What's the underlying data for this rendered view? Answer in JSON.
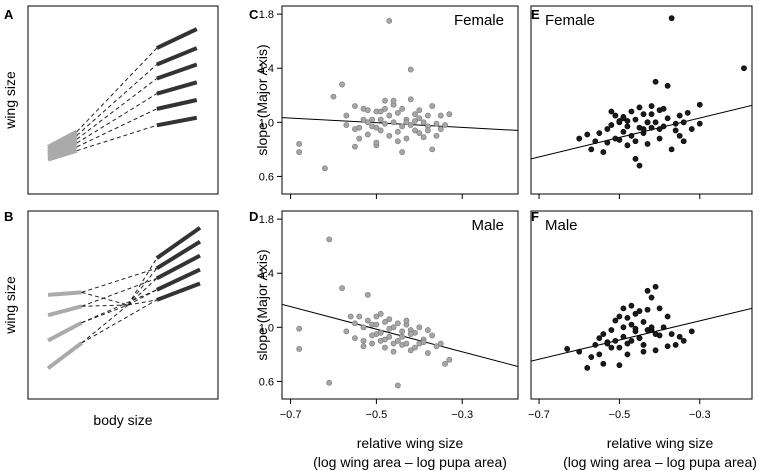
{
  "panels": {
    "A": {
      "letter": "A",
      "ylabel": "wing size"
    },
    "B": {
      "letter": "B",
      "ylabel": "wing size"
    },
    "xlabel_schematic": "body size"
  },
  "colors": {
    "light_segment": "#aaaaaa",
    "dark_segment": "#333333",
    "grey_point": "#a6a6a6",
    "black_point": "#1a1a1a",
    "axis": "#000000"
  },
  "axes_text": {
    "ylabel": "slope (Major Axis)",
    "xlabel_line1": "relative wing size",
    "xlabel_line2": "(log wing area – log pupa area)"
  },
  "chart_data": [
    {
      "type": "schematic",
      "panel": "A",
      "xlabel": "",
      "ylabel": "wing size",
      "description_values": {
        "light_start": [
          {
            "x": 0.0,
            "y": 1.3
          },
          {
            "x": 0.0,
            "y": 1.5
          },
          {
            "x": 0.0,
            "y": 1.7
          },
          {
            "x": 0.0,
            "y": 1.9
          },
          {
            "x": 0.0,
            "y": 2.1
          },
          {
            "x": 0.0,
            "y": 2.3
          }
        ],
        "light_end": [
          {
            "x": 0.18,
            "y": 2.0
          },
          {
            "x": 0.18,
            "y": 2.3
          },
          {
            "x": 0.18,
            "y": 2.6
          },
          {
            "x": 0.18,
            "y": 2.9
          },
          {
            "x": 0.18,
            "y": 3.2
          },
          {
            "x": 0.18,
            "y": 3.5
          }
        ],
        "dark_start": [
          {
            "x": 0.68,
            "y": 4.0
          },
          {
            "x": 0.68,
            "y": 5.3
          },
          {
            "x": 0.68,
            "y": 6.5
          },
          {
            "x": 0.68,
            "y": 7.7
          },
          {
            "x": 0.68,
            "y": 8.8
          },
          {
            "x": 0.68,
            "y": 10.1
          }
        ],
        "dark_end": [
          {
            "x": 0.93,
            "y": 4.6
          },
          {
            "x": 0.93,
            "y": 6.0
          },
          {
            "x": 0.93,
            "y": 7.4
          },
          {
            "x": 0.93,
            "y": 8.8
          },
          {
            "x": 0.93,
            "y": 10.1
          },
          {
            "x": 0.93,
            "y": 11.6
          }
        ]
      }
    },
    {
      "type": "schematic",
      "panel": "B",
      "xlabel": "body size",
      "ylabel": "wing size",
      "description_values": {
        "light_start": [
          {
            "x": 0.0,
            "y": 1.0
          },
          {
            "x": 0.0,
            "y": 3.2
          },
          {
            "x": 0.0,
            "y": 5.2
          },
          {
            "x": 0.0,
            "y": 6.8
          }
        ],
        "light_end": [
          {
            "x": 0.21,
            "y": 3.0
          },
          {
            "x": 0.21,
            "y": 4.6
          },
          {
            "x": 0.21,
            "y": 5.9
          },
          {
            "x": 0.21,
            "y": 7.0
          }
        ],
        "dark_start": [
          {
            "x": 0.68,
            "y": 6.4
          },
          {
            "x": 0.68,
            "y": 7.2
          },
          {
            "x": 0.68,
            "y": 8.1
          },
          {
            "x": 0.68,
            "y": 8.9
          },
          {
            "x": 0.68,
            "y": 9.7
          }
        ],
        "dark_end": [
          {
            "x": 0.95,
            "y": 7.7
          },
          {
            "x": 0.95,
            "y": 8.8
          },
          {
            "x": 0.95,
            "y": 9.9
          },
          {
            "x": 0.95,
            "y": 11.0
          },
          {
            "x": 0.95,
            "y": 12.1
          }
        ]
      }
    },
    {
      "type": "scatter",
      "panel": "C",
      "title": "Female",
      "xlabel": "",
      "ylabel": "slope (Major Axis)",
      "xlim": [
        -0.72,
        -0.17
      ],
      "ylim": [
        0.47,
        1.86
      ],
      "xticks": [
        -0.7,
        -0.5,
        -0.3
      ],
      "yticks": [
        0.6,
        1.0,
        1.4,
        1.8
      ],
      "ytick_labels": [
        "0.6",
        "1.0",
        "1.4",
        "1.8"
      ],
      "fit_line": {
        "x": [
          -0.72,
          -0.17
        ],
        "y": [
          1.035,
          0.94
        ]
      },
      "x": [
        -0.68,
        -0.68,
        -0.62,
        -0.6,
        -0.58,
        -0.57,
        -0.55,
        -0.55,
        -0.53,
        -0.54,
        -0.52,
        -0.52,
        -0.51,
        -0.5,
        -0.5,
        -0.49,
        -0.49,
        -0.48,
        -0.48,
        -0.47,
        -0.47,
        -0.46,
        -0.46,
        -0.45,
        -0.45,
        -0.44,
        -0.44,
        -0.43,
        -0.43,
        -0.42,
        -0.42,
        -0.41,
        -0.41,
        -0.4,
        -0.4,
        -0.39,
        -0.39,
        -0.38,
        -0.38,
        -0.37,
        -0.37,
        -0.36,
        -0.36,
        -0.35,
        -0.35,
        -0.34,
        -0.33,
        -0.47,
        -0.5,
        -0.53,
        -0.55,
        -0.57,
        -0.42,
        -0.46,
        -0.49,
        -0.44,
        -0.52,
        -0.48,
        -0.43,
        -0.4,
        -0.54,
        -0.51,
        -0.45,
        -0.38,
        -0.5,
        -0.41
      ],
      "y": [
        0.84,
        0.78,
        0.66,
        1.19,
        1.28,
        1.05,
        1.12,
        0.95,
        1.02,
        0.88,
        1.0,
        0.91,
        0.97,
        1.08,
        0.83,
        1.02,
        0.94,
        1.1,
        0.99,
        1.05,
        0.9,
        1.13,
        1.0,
        1.07,
        0.93,
        1.1,
        0.97,
        1.02,
        0.88,
        1.39,
        0.98,
        1.06,
        0.94,
        1.03,
        0.92,
        1.0,
        0.89,
        1.05,
        0.97,
        1.12,
        0.8,
        0.99,
        0.9,
        1.05,
        0.95,
        0.98,
        1.06,
        1.75,
        0.85,
        1.1,
        0.82,
        0.98,
        1.17,
        1.16,
        1.08,
        0.78,
        1.09,
        1.16,
        1.0,
        1.09,
        0.96,
        1.02,
        0.86,
        0.94,
        0.96,
        1.01
      ]
    },
    {
      "type": "scatter",
      "panel": "D",
      "title": "Male",
      "xlabel": "relative wing size\n(log wing area – log pupa area)",
      "ylabel": "slope (Major Axis)",
      "xlim": [
        -0.72,
        -0.17
      ],
      "ylim": [
        0.47,
        1.86
      ],
      "xticks": [
        -0.7,
        -0.5,
        -0.3
      ],
      "yticks": [
        0.6,
        1.0,
        1.4,
        1.8
      ],
      "xtick_labels": [
        "−0.7",
        "−0.5",
        "−0.3"
      ],
      "ytick_labels": [
        "0.6",
        "1.0",
        "1.4",
        "1.8"
      ],
      "fit_line": {
        "x": [
          -0.72,
          -0.17
        ],
        "y": [
          1.17,
          0.71
        ]
      },
      "x": [
        -0.68,
        -0.68,
        -0.61,
        -0.61,
        -0.58,
        -0.56,
        -0.55,
        -0.54,
        -0.53,
        -0.53,
        -0.52,
        -0.51,
        -0.51,
        -0.5,
        -0.5,
        -0.49,
        -0.49,
        -0.48,
        -0.48,
        -0.47,
        -0.47,
        -0.46,
        -0.46,
        -0.45,
        -0.45,
        -0.44,
        -0.44,
        -0.43,
        -0.43,
        -0.42,
        -0.42,
        -0.41,
        -0.41,
        -0.4,
        -0.4,
        -0.39,
        -0.38,
        -0.38,
        -0.37,
        -0.36,
        -0.35,
        -0.34,
        -0.33,
        -0.52,
        -0.49,
        -0.55,
        -0.47,
        -0.5,
        -0.44,
        -0.57,
        -0.46,
        -0.48,
        -0.53,
        -0.42,
        -0.39,
        -0.51,
        -0.45,
        -0.43
      ],
      "y": [
        0.99,
        0.84,
        0.59,
        1.65,
        1.29,
        1.08,
        1.03,
        1.08,
        1.0,
        0.9,
        1.24,
        1.02,
        0.88,
        1.08,
        0.95,
        1.1,
        0.9,
        1.04,
        0.85,
        1.06,
        0.93,
        1.0,
        0.82,
        1.03,
        0.9,
        0.97,
        0.87,
        1.02,
        0.88,
        0.98,
        0.83,
        0.96,
        0.85,
        1.0,
        0.88,
        0.91,
        0.98,
        0.81,
        0.94,
        0.86,
        0.88,
        0.73,
        0.76,
        1.05,
        0.96,
        0.92,
        0.99,
        1.02,
        0.93,
        0.97,
        0.88,
        0.91,
        0.86,
        0.95,
        0.89,
        0.94,
        0.57,
        1.05
      ]
    },
    {
      "type": "scatter",
      "panel": "E",
      "title": "Female",
      "xlabel": "",
      "ylabel": "",
      "xlim": [
        -0.72,
        -0.17
      ],
      "ylim": [
        0.47,
        1.86
      ],
      "xticks": [
        -0.7,
        -0.5,
        -0.3
      ],
      "fit_line": {
        "x": [
          -0.72,
          -0.17
        ],
        "y": [
          0.73,
          1.125
        ]
      },
      "x": [
        -0.6,
        -0.58,
        -0.57,
        -0.56,
        -0.55,
        -0.54,
        -0.53,
        -0.53,
        -0.52,
        -0.51,
        -0.51,
        -0.5,
        -0.5,
        -0.49,
        -0.49,
        -0.48,
        -0.48,
        -0.47,
        -0.47,
        -0.46,
        -0.46,
        -0.45,
        -0.45,
        -0.44,
        -0.44,
        -0.43,
        -0.43,
        -0.42,
        -0.42,
        -0.41,
        -0.41,
        -0.4,
        -0.4,
        -0.39,
        -0.39,
        -0.38,
        -0.38,
        -0.37,
        -0.36,
        -0.35,
        -0.35,
        -0.34,
        -0.33,
        -0.32,
        -0.3,
        -0.52,
        -0.48,
        -0.45,
        -0.42,
        -0.37,
        -0.34,
        -0.5,
        -0.46,
        -0.44,
        -0.4,
        -0.43,
        -0.49,
        -0.36,
        -0.3,
        -0.19
      ],
      "y": [
        0.88,
        0.91,
        0.8,
        0.86,
        0.92,
        0.78,
        0.95,
        0.85,
        0.98,
        1.05,
        0.88,
        1.0,
        0.87,
        1.04,
        0.93,
        0.97,
        0.83,
        1.08,
        0.9,
        1.02,
        0.86,
        1.11,
        0.96,
        1.06,
        0.92,
        1.0,
        0.84,
        1.06,
        0.96,
        1.3,
        1.0,
        1.09,
        0.95,
        1.1,
        0.97,
        1.27,
        1.03,
        1.77,
        0.99,
        1.05,
        0.9,
        1.0,
        1.07,
        0.95,
        1.13,
        1.08,
        1.01,
        0.68,
        1.12,
        0.8,
        0.86,
        1.01,
        0.73,
        0.95,
        0.88,
        1.0,
        1.03,
        0.94,
        0.99,
        1.4
      ]
    },
    {
      "type": "scatter",
      "panel": "F",
      "title": "Male",
      "xlabel": "relative wing size\n(log wing area – log pupa area)",
      "ylabel": "",
      "xlim": [
        -0.72,
        -0.17
      ],
      "ylim": [
        0.47,
        1.86
      ],
      "xticks": [
        -0.7,
        -0.5,
        -0.3
      ],
      "xtick_labels": [
        "−0.7",
        "−0.5",
        "−0.3"
      ],
      "fit_line": {
        "x": [
          -0.72,
          -0.17
        ],
        "y": [
          0.75,
          1.14
        ]
      },
      "x": [
        -0.63,
        -0.6,
        -0.58,
        -0.57,
        -0.56,
        -0.55,
        -0.54,
        -0.54,
        -0.53,
        -0.52,
        -0.52,
        -0.51,
        -0.51,
        -0.5,
        -0.5,
        -0.49,
        -0.49,
        -0.48,
        -0.48,
        -0.47,
        -0.47,
        -0.46,
        -0.46,
        -0.45,
        -0.45,
        -0.44,
        -0.44,
        -0.43,
        -0.43,
        -0.42,
        -0.42,
        -0.41,
        -0.41,
        -0.4,
        -0.39,
        -0.38,
        -0.37,
        -0.36,
        -0.35,
        -0.34,
        -0.32,
        -0.5,
        -0.47,
        -0.44,
        -0.42,
        -0.53,
        -0.48,
        -0.45,
        -0.4,
        -0.38,
        -0.43,
        -0.46,
        -0.41,
        -0.55,
        -0.49
      ],
      "y": [
        0.84,
        0.82,
        0.7,
        0.78,
        0.87,
        0.8,
        0.95,
        0.73,
        0.89,
        0.98,
        0.85,
        1.05,
        0.9,
        1.08,
        0.85,
        1.0,
        0.93,
        1.07,
        0.88,
        1.02,
        0.9,
        1.1,
        0.97,
        1.12,
        0.92,
        1.04,
        0.87,
        1.13,
        0.98,
        1.22,
        0.98,
        1.3,
        0.95,
        1.14,
        1.0,
        1.08,
        0.95,
        0.87,
        0.93,
        0.9,
        0.97,
        0.72,
        1.16,
        0.82,
        1.0,
        0.88,
        0.8,
        0.92,
        0.94,
        0.86,
        1.27,
        0.99,
        0.83,
        0.92,
        1.14
      ]
    }
  ]
}
